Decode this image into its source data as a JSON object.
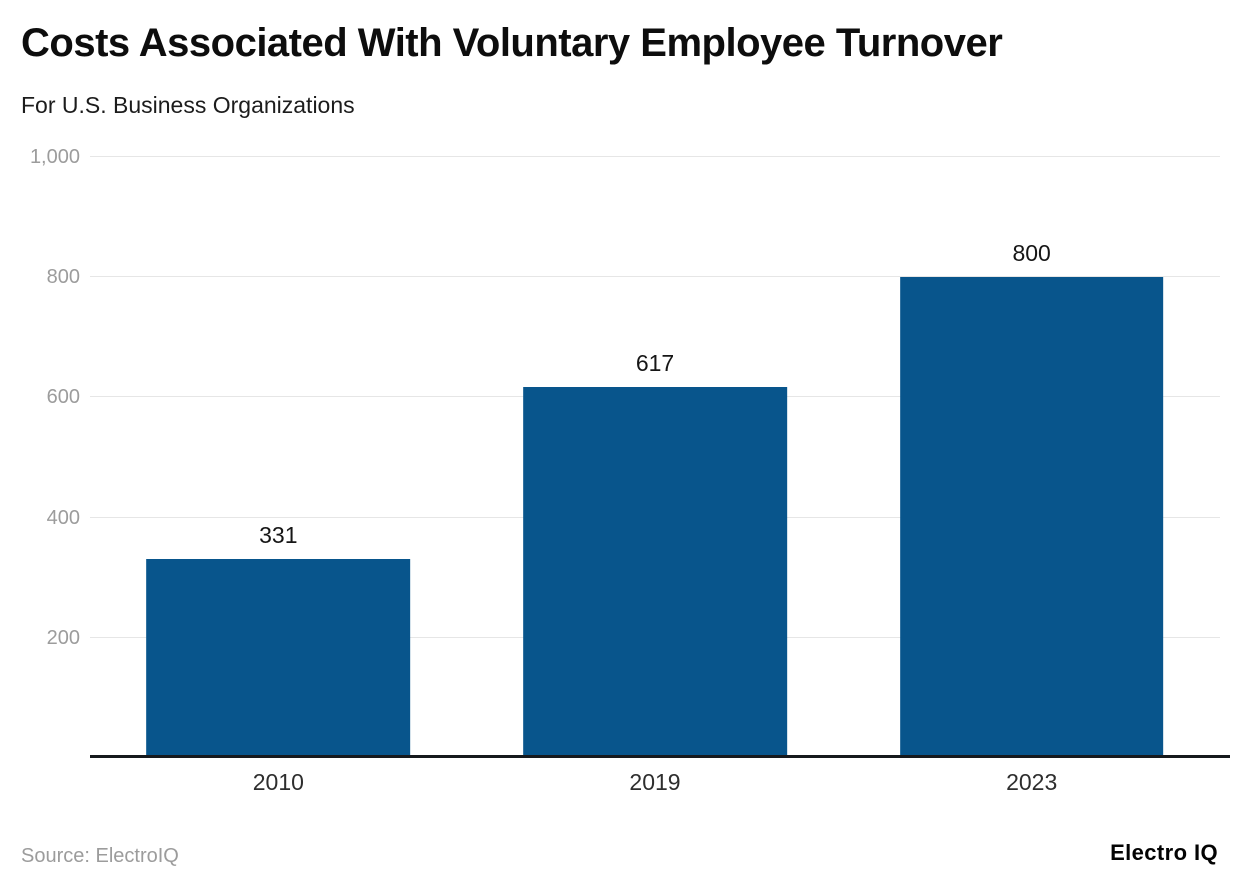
{
  "header": {
    "title": "Costs Associated With Voluntary Employee Turnover",
    "subtitle": "For U.S. Business Organizations"
  },
  "footer": {
    "source": "Source: ElectroIQ",
    "brand": "Electro IQ"
  },
  "chart_data": {
    "type": "bar",
    "title": "Costs Associated With Voluntary Employee Turnover",
    "subtitle": "For U.S. Business Organizations",
    "categories": [
      "2010",
      "2019",
      "2023"
    ],
    "values": [
      331,
      617,
      800
    ],
    "value_labels": [
      "331",
      "617",
      "800"
    ],
    "xlabel": "",
    "ylabel": "",
    "ylim": [
      0,
      1000
    ],
    "yticks": [
      200,
      400,
      600,
      800,
      1000
    ],
    "ytick_labels": [
      "200",
      "400",
      "600",
      "800",
      "1,000"
    ],
    "grid": true,
    "legend": false,
    "bar_color": "#08558c",
    "gridline_color": "#e6e6e6",
    "axis_line_color": "#16191d",
    "tick_label_color": "#9c9c9c"
  }
}
